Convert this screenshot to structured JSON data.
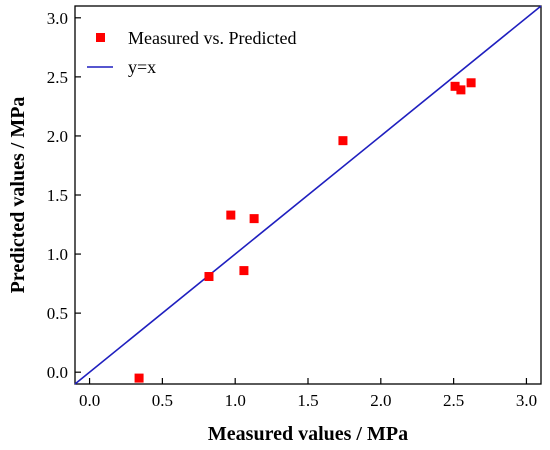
{
  "chart_data": {
    "type": "scatter",
    "title": "",
    "xlabel": "Measured values / MPa",
    "ylabel": "Predicted values / MPa",
    "xlim": [
      -0.1,
      3.1
    ],
    "ylim": [
      -0.1,
      3.1
    ],
    "xticks": [
      "0.0",
      "0.5",
      "1.0",
      "1.5",
      "2.0",
      "2.5",
      "3.0"
    ],
    "yticks": [
      "0.0",
      "0.5",
      "1.0",
      "1.5",
      "2.0",
      "2.5",
      "3.0"
    ],
    "grid": false,
    "legend_position": "top-left",
    "series": [
      {
        "name": "Measured vs. Predicted",
        "kind": "scatter",
        "marker": "square",
        "color": "#ff0000",
        "points": [
          {
            "x": 0.34,
            "y": -0.05
          },
          {
            "x": 0.82,
            "y": 0.81
          },
          {
            "x": 0.97,
            "y": 1.33
          },
          {
            "x": 1.06,
            "y": 0.86
          },
          {
            "x": 1.13,
            "y": 1.3
          },
          {
            "x": 1.74,
            "y": 1.96
          },
          {
            "x": 2.51,
            "y": 2.42
          },
          {
            "x": 2.55,
            "y": 2.39
          },
          {
            "x": 2.62,
            "y": 2.45
          }
        ]
      },
      {
        "name": "y=x",
        "kind": "line",
        "color": "#1f1fbf",
        "points": [
          {
            "x": -0.1,
            "y": -0.1
          },
          {
            "x": 3.1,
            "y": 3.1
          }
        ]
      }
    ]
  }
}
